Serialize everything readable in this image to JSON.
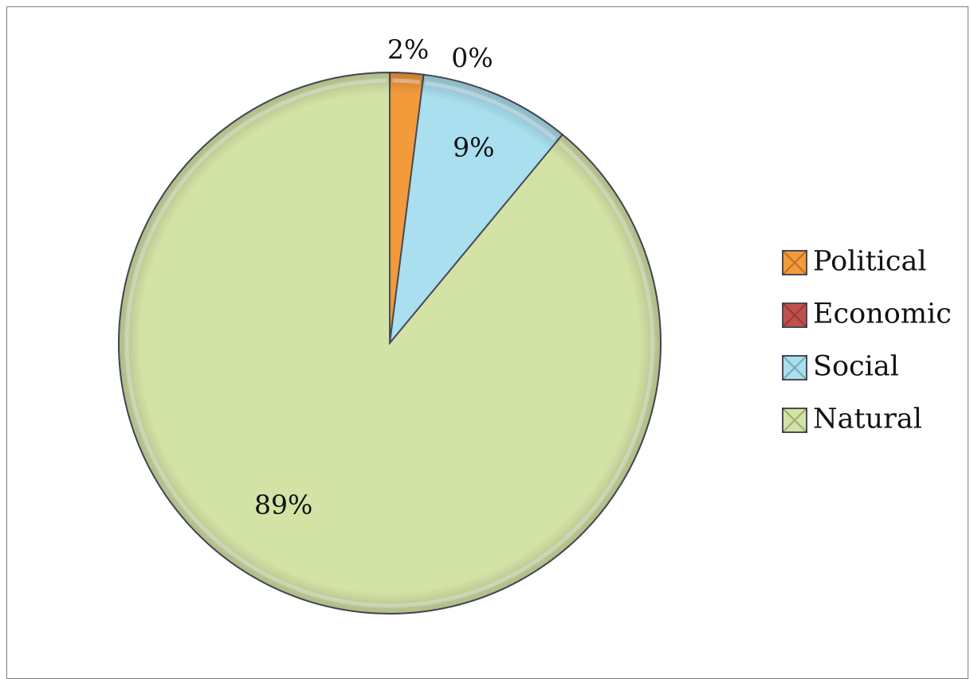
{
  "chart_data": {
    "type": "pie",
    "title": "",
    "categories": [
      "Political",
      "Economic",
      "Social",
      "Natural"
    ],
    "values": [
      2,
      0,
      9,
      89
    ],
    "data_labels": [
      "2%",
      "0%",
      "9%",
      "89%"
    ],
    "colors": [
      "#F39A3B",
      "#C0504D",
      "#A9DFEF",
      "#D3E3A5"
    ],
    "legend_position": "right",
    "start_angle_deg": 0,
    "direction": "clockwise",
    "style": "beveled"
  }
}
